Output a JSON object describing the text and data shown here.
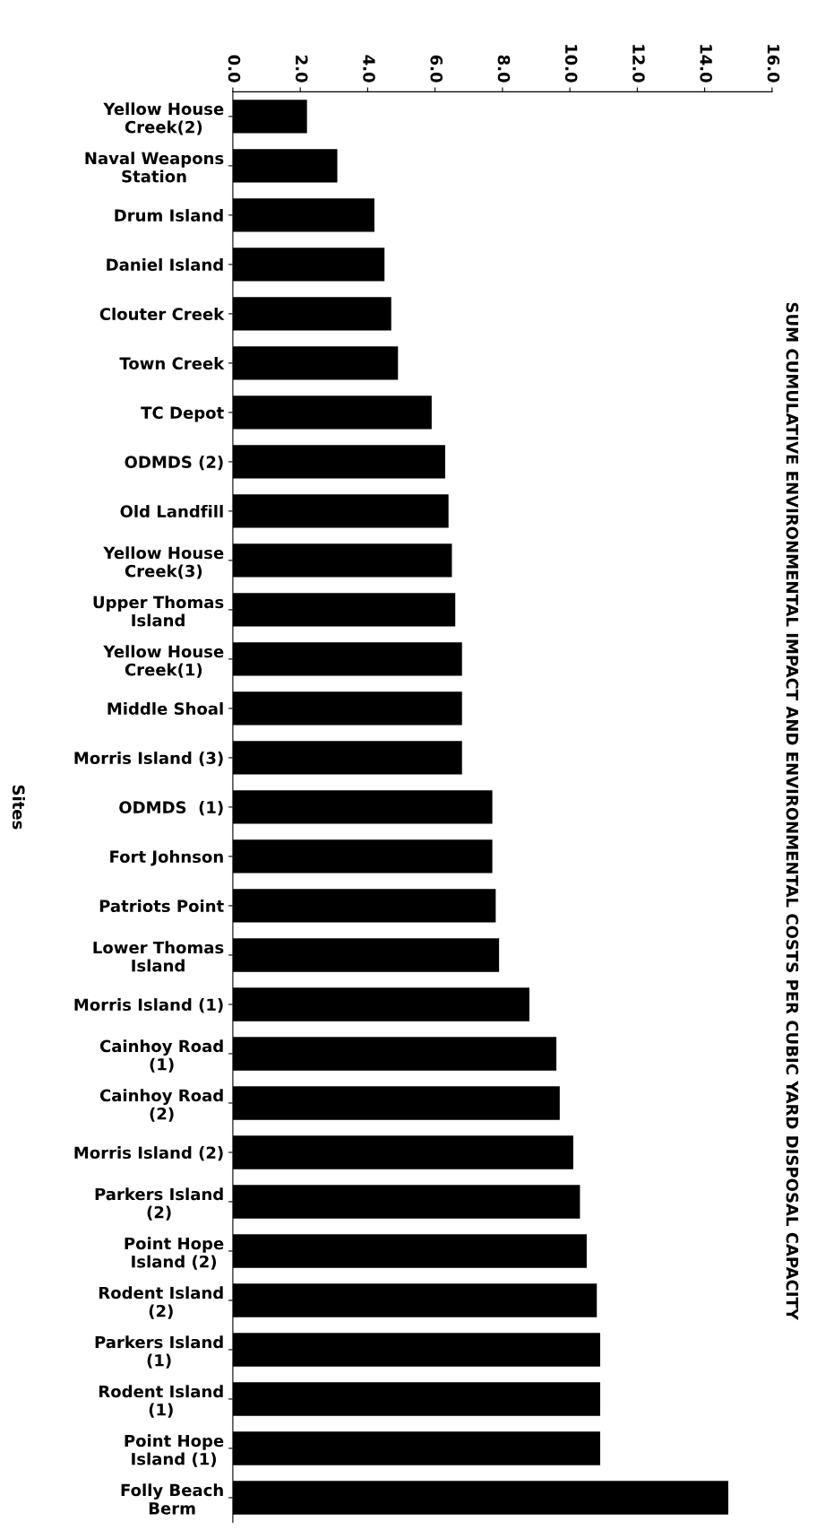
{
  "chart_data": {
    "type": "bar",
    "orientation": "horizontal",
    "annotations": [
      "SUM CUMULATIVE ENVIRONMENTAL IMPACT AND ENVIRONMENTAL COSTS PER CUBIC YARD DISPOSAL CAPACITY"
    ],
    "ylabel": "Sites",
    "categories": [
      "Yellow House\nCreek(2)",
      "Naval Weapons\nStation",
      "Drum Island",
      "Daniel Island",
      "Clouter Creek",
      "Town Creek",
      "TC Depot",
      "ODMDS (2)",
      "Old Landfill",
      "Yellow House\nCreek(3)",
      "Upper Thomas\nIsland",
      "Yellow House\nCreek(1)",
      "Middle Shoal",
      "Morris Island (3)",
      "ODMDS  (1)",
      "Fort Johnson",
      "Patriots Point",
      "Lower Thomas\nIsland",
      "Morris Island (1)",
      "Cainhoy Road\n(1)",
      "Cainhoy Road\n(2)",
      "Morris Island (2)",
      "Parkers Island\n(2)",
      "Point Hope\nIsland (2)",
      "Rodent Island\n(2)",
      "Parkers Island\n(1)",
      "Rodent Island\n(1)",
      "Point Hope\nIsland (1)",
      "Folly Beach\nBerm"
    ],
    "values": [
      2.2,
      3.1,
      4.2,
      4.5,
      4.7,
      4.9,
      5.9,
      6.3,
      6.4,
      6.5,
      6.6,
      6.8,
      6.8,
      6.8,
      7.7,
      7.7,
      7.8,
      7.9,
      8.8,
      9.6,
      9.7,
      10.1,
      10.3,
      10.5,
      10.8,
      10.9,
      10.9,
      10.9,
      14.7
    ],
    "color": "#000000",
    "xlim": [
      0,
      16
    ],
    "xticks": [
      {
        "value": 0,
        "label": "0.0"
      },
      {
        "value": 2,
        "label": "2.0"
      },
      {
        "value": 4,
        "label": "4.0"
      },
      {
        "value": 6,
        "label": "6.0"
      },
      {
        "value": 8,
        "label": "8.0"
      },
      {
        "value": 10,
        "label": "10.0"
      },
      {
        "value": 12,
        "label": "12.0"
      },
      {
        "value": 14,
        "label": "14.0"
      },
      {
        "value": 16,
        "label": "16.0"
      }
    ],
    "grid": false
  }
}
